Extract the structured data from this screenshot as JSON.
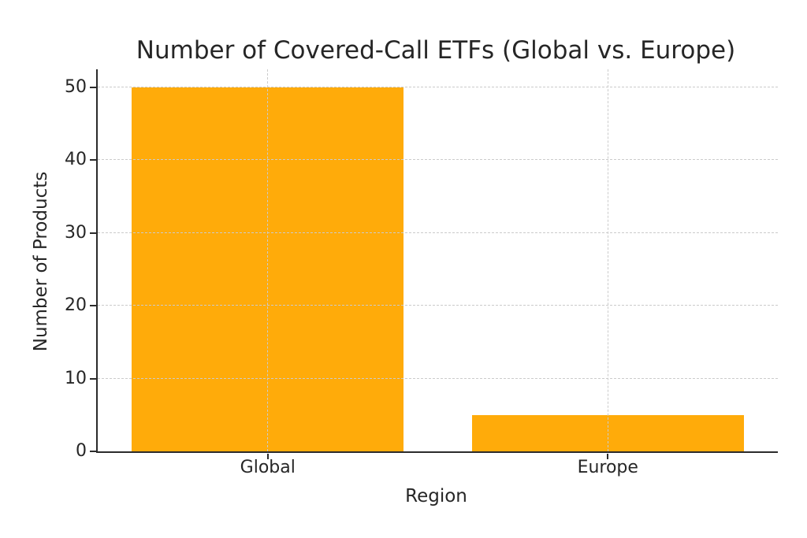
{
  "chart_data": {
    "type": "bar",
    "title": "Number of Covered-Call ETFs (Global vs. Europe)",
    "xlabel": "Region",
    "ylabel": "Number of Products",
    "categories": [
      "Global",
      "Europe"
    ],
    "values": [
      50,
      5
    ],
    "yticks": [
      0,
      10,
      20,
      30,
      40,
      50
    ],
    "ylim": [
      0,
      52.5
    ],
    "bar_width_fraction": 0.8,
    "bar_color": "#FFAB0A",
    "grid": {
      "style": "dashed",
      "axes": "both",
      "color": "#cbcbcb",
      "drawn_over_bars": true
    },
    "legend": null,
    "spines": {
      "left": true,
      "bottom": true,
      "top": false,
      "right": false
    },
    "text_color": "#262626",
    "spine_color": "#2b2b2b",
    "background": "#ffffff"
  }
}
